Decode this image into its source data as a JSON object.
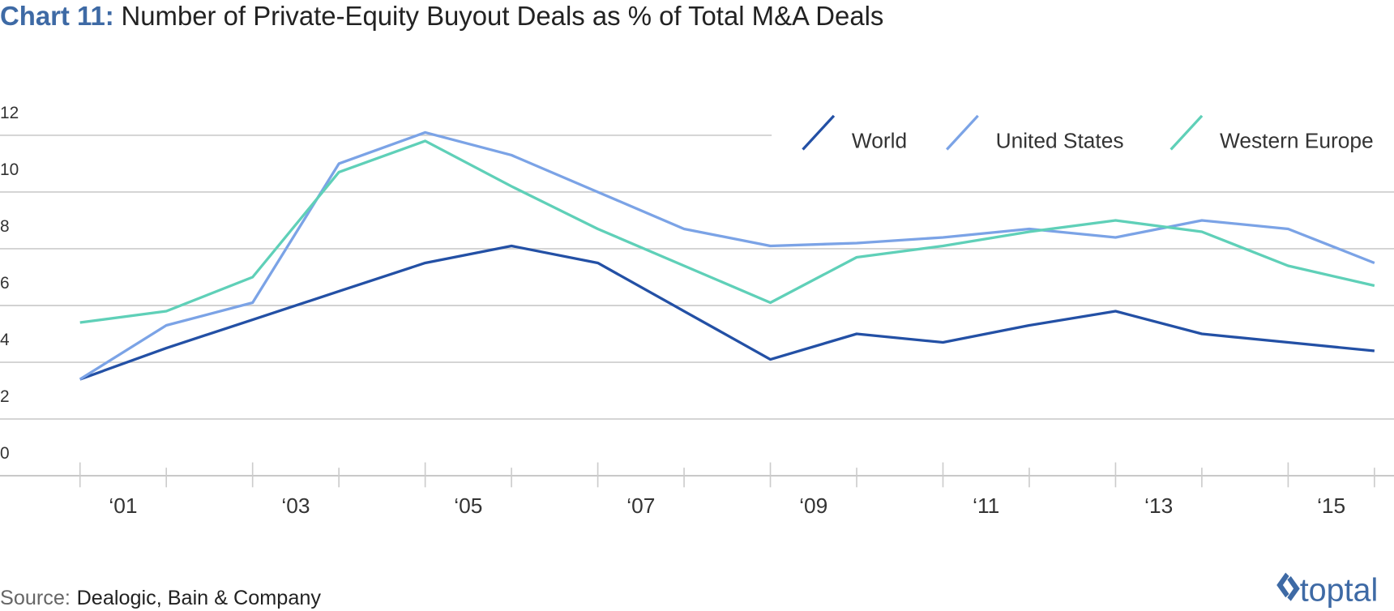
{
  "chart_data": {
    "type": "line",
    "title_prefix": "Chart 11:",
    "title": "Number of Private-Equity Buyout Deals as % of Total M&A Deals",
    "source_label": "Source:",
    "source": "Dealogic, Bain & Company",
    "brand": "toptal",
    "categories": [
      "‘01",
      null,
      "‘03",
      null,
      "‘05",
      null,
      "‘07",
      null,
      "‘09",
      null,
      "‘11",
      null,
      "‘13",
      null,
      "‘15",
      null
    ],
    "series": [
      {
        "name": "World",
        "color": "#2350a5",
        "values": [
          3.4,
          4.5,
          5.5,
          6.5,
          7.5,
          8.1,
          7.5,
          5.8,
          4.1,
          5.0,
          4.7,
          5.3,
          5.8,
          5.0,
          4.7,
          4.4
        ]
      },
      {
        "name": "United States",
        "color": "#7ba3e6",
        "values": [
          3.4,
          5.3,
          6.1,
          11.0,
          12.1,
          11.3,
          10.0,
          8.7,
          8.1,
          8.2,
          8.4,
          8.7,
          8.4,
          9.0,
          8.7,
          7.5
        ]
      },
      {
        "name": "Western Europe",
        "color": "#5fd0b8",
        "values": [
          5.4,
          5.8,
          7.0,
          10.7,
          11.8,
          10.2,
          8.7,
          7.4,
          6.1,
          7.7,
          8.1,
          8.6,
          9.0,
          8.6,
          7.4,
          6.7
        ]
      }
    ],
    "ylim": [
      0,
      12
    ],
    "yticks": [
      0,
      2,
      4,
      6,
      8,
      10,
      12
    ],
    "grid": true,
    "legend": "top-right"
  }
}
